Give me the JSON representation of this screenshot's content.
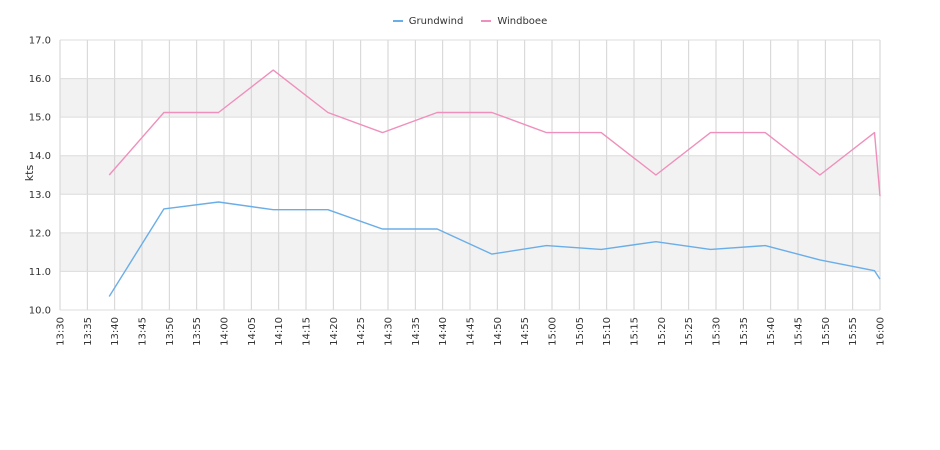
{
  "chart_data": {
    "type": "line",
    "ylabel": "kts",
    "xlabel": "",
    "ylim": [
      10.0,
      17.0
    ],
    "y_ticks": [
      "10.0",
      "11.0",
      "12.0",
      "13.0",
      "14.0",
      "15.0",
      "16.0",
      "17.0"
    ],
    "x_ticks": [
      "13:30",
      "13:35",
      "13:40",
      "13:45",
      "13:50",
      "13:55",
      "14:00",
      "14:05",
      "14:10",
      "14:15",
      "14:20",
      "14:25",
      "14:30",
      "14:35",
      "14:40",
      "14:45",
      "14:50",
      "14:55",
      "15:00",
      "15:05",
      "15:10",
      "15:15",
      "15:20",
      "15:25",
      "15:30",
      "15:35",
      "15:40",
      "15:45",
      "15:50",
      "15:55",
      "16:00"
    ],
    "xlim": [
      "13:30",
      "16:00"
    ],
    "legend_position": "top-center",
    "grid": true,
    "band_fill": "#f2f2f2",
    "series": [
      {
        "name": "Grundwind",
        "color": "#6aaee8",
        "x": [
          "13:39",
          "13:49",
          "13:59",
          "14:09",
          "14:19",
          "14:29",
          "14:39",
          "14:49",
          "14:59",
          "15:09",
          "15:19",
          "15:29",
          "15:39",
          "15:49",
          "15:59",
          "16:00"
        ],
        "values": [
          10.35,
          12.62,
          12.8,
          12.6,
          12.6,
          12.1,
          12.1,
          11.45,
          11.67,
          11.57,
          11.77,
          11.57,
          11.67,
          11.3,
          11.02,
          10.8
        ]
      },
      {
        "name": "Windboee",
        "color": "#ef8fbc",
        "x": [
          "13:39",
          "13:49",
          "13:59",
          "14:09",
          "14:19",
          "14:29",
          "14:39",
          "14:49",
          "14:59",
          "15:09",
          "15:19",
          "15:29",
          "15:39",
          "15:49",
          "15:59",
          "16:00"
        ],
        "values": [
          13.5,
          15.12,
          15.12,
          16.22,
          15.12,
          14.6,
          15.12,
          15.12,
          14.6,
          14.6,
          13.5,
          14.6,
          14.6,
          13.5,
          14.6,
          12.95
        ]
      }
    ]
  }
}
